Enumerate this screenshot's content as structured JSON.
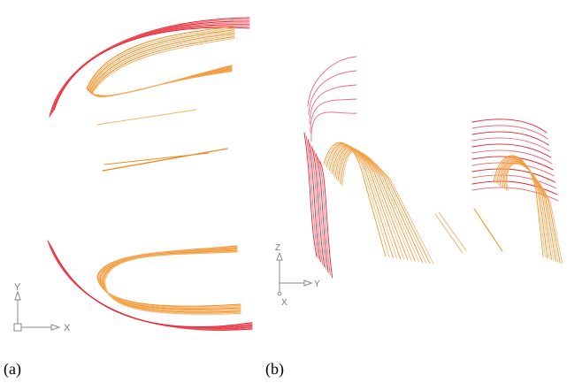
{
  "figure": {
    "panels": [
      {
        "caption": "(a)",
        "view": "top",
        "axes": {
          "horizontal": "X",
          "vertical": "Y"
        }
      },
      {
        "caption": "(b)",
        "view": "side",
        "axes": {
          "horizontal": "Y",
          "vertical": "Z",
          "depth": "X"
        }
      }
    ]
  },
  "colors": {
    "red_curves": "#e8202a",
    "red_light": "#ee6a7a",
    "orange_curves": "#f08a1c",
    "orange_light": "#f5b46a",
    "axis_icon": "#888888"
  }
}
